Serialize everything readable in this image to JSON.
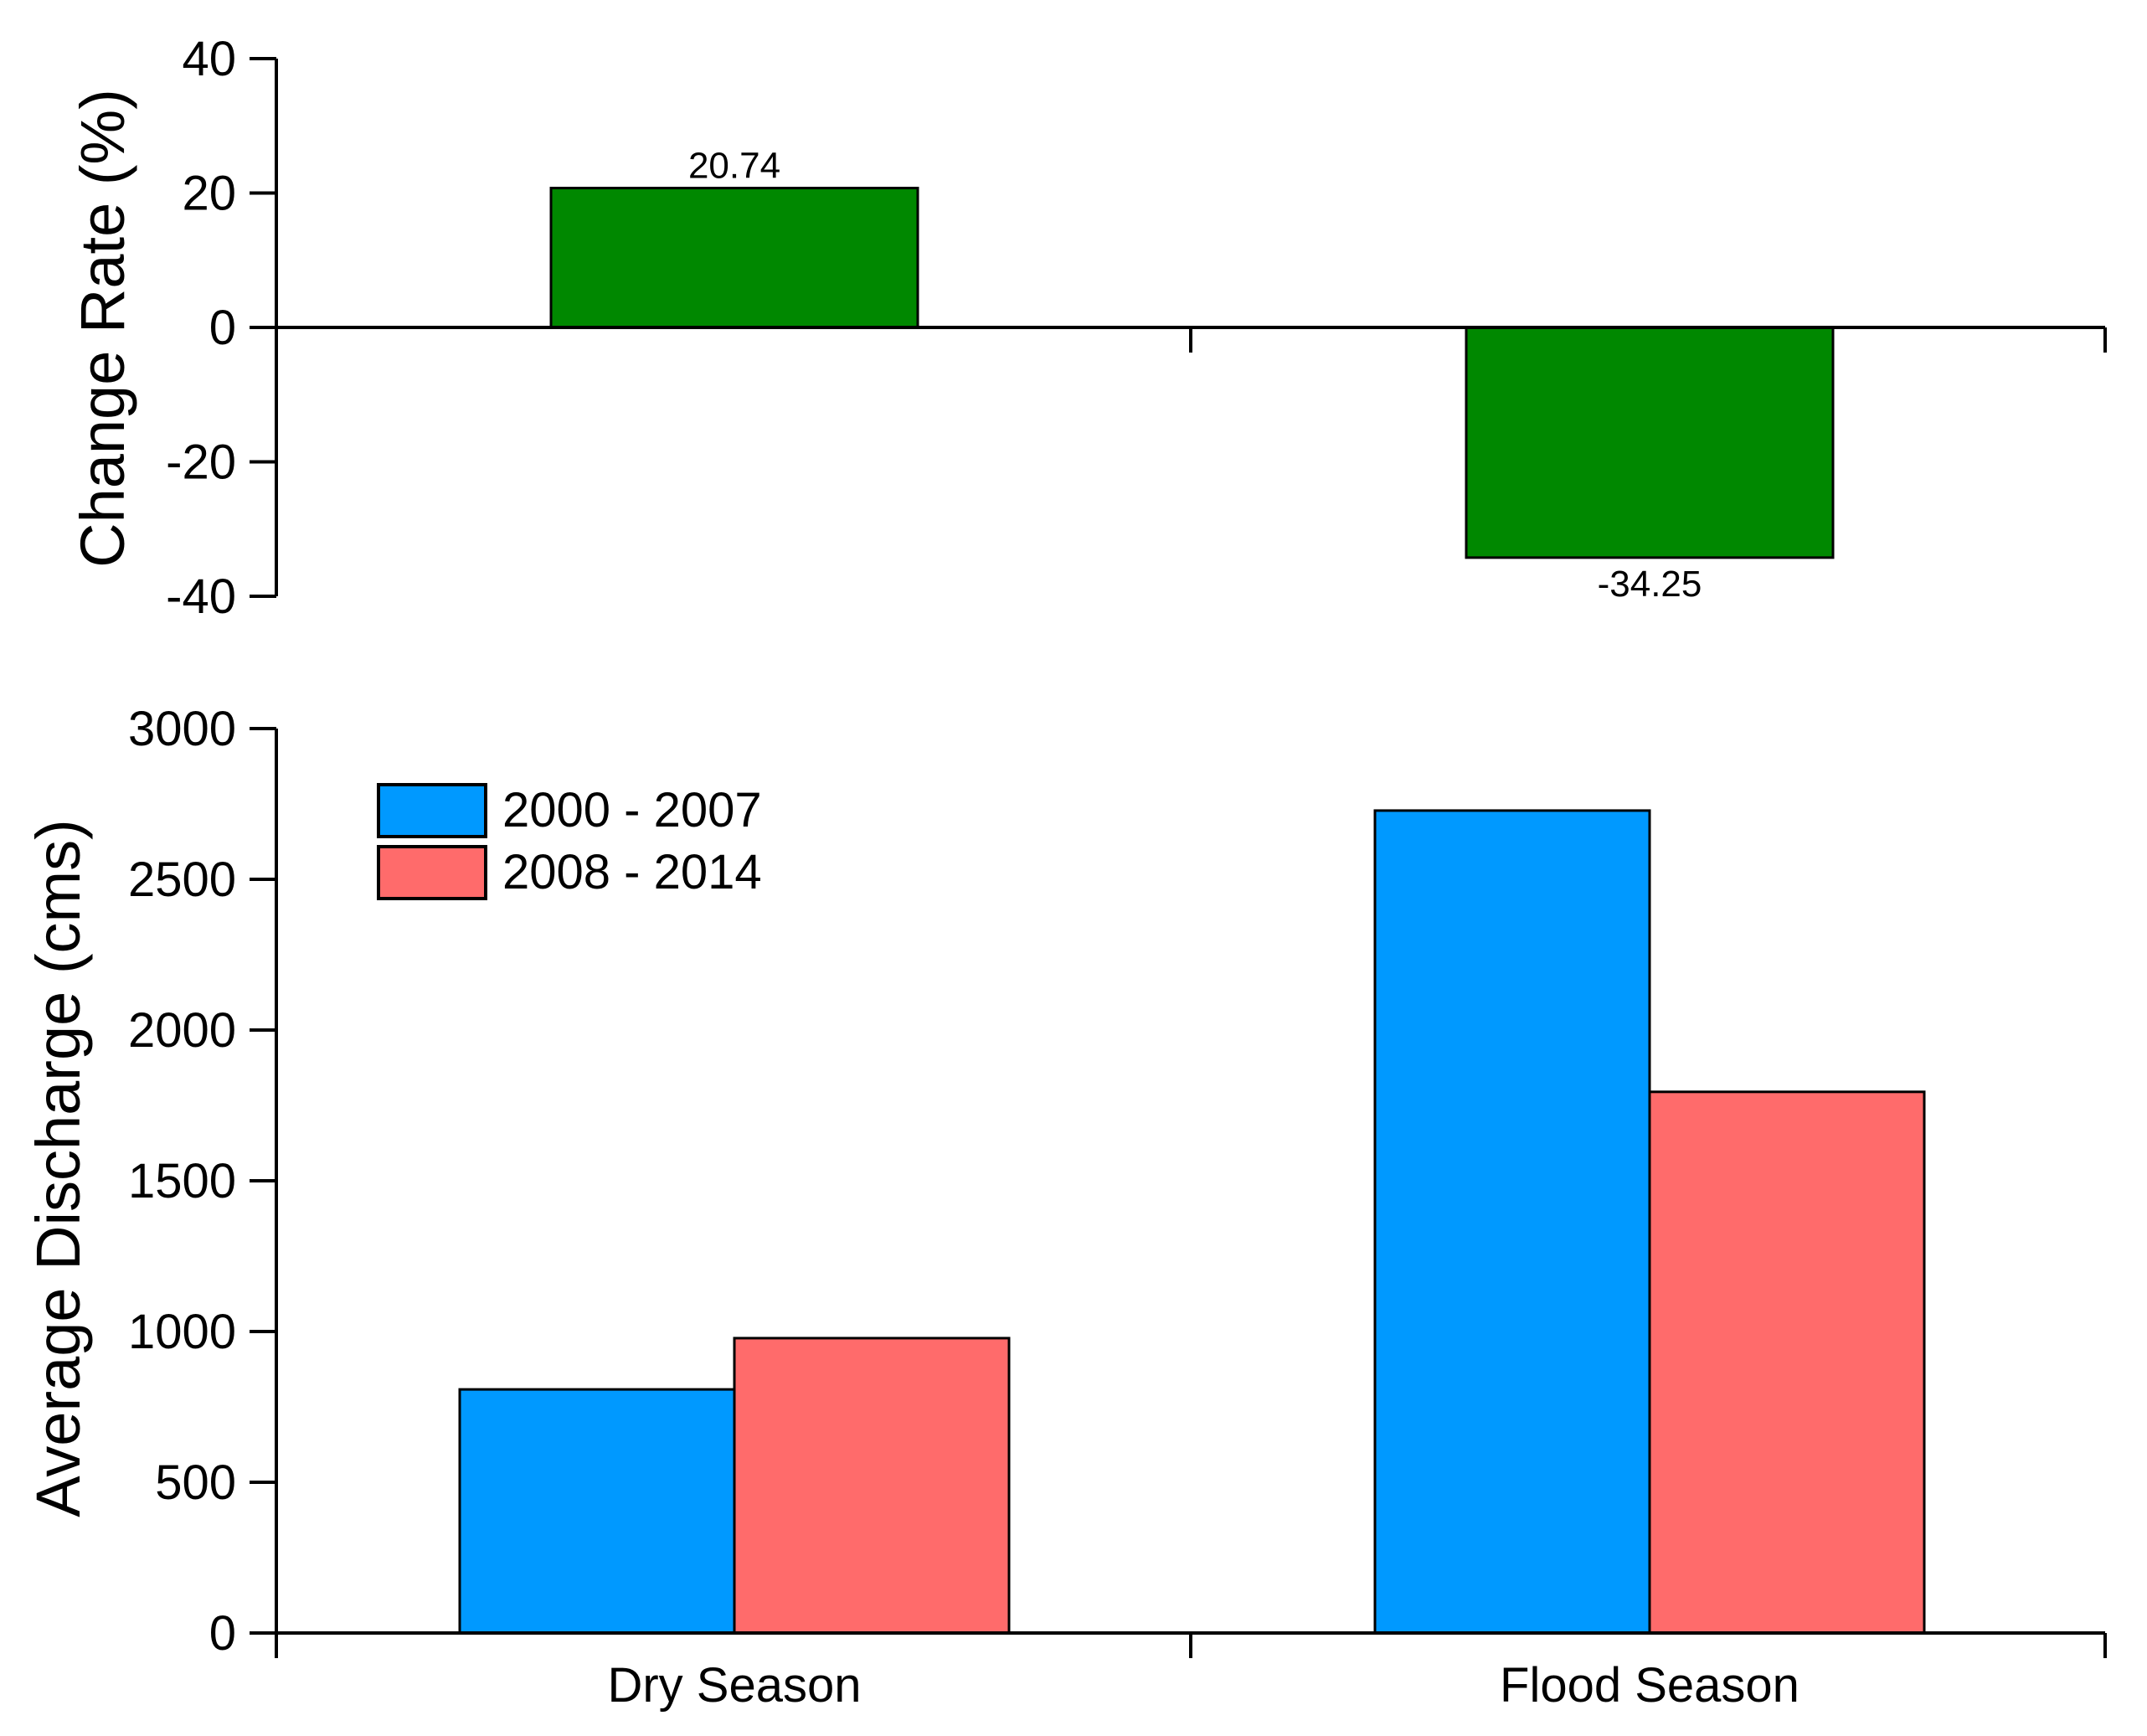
{
  "chart_data": [
    {
      "type": "bar",
      "title": "",
      "xlabel": "",
      "ylabel": "Change Rate (%)",
      "ylim": [
        -40,
        40
      ],
      "yticks": [
        "40",
        "20",
        "0",
        "-20",
        "-40"
      ],
      "categories": [
        "Dry Season",
        "Flood Season"
      ],
      "values": [
        20.74,
        -34.25
      ],
      "value_labels": [
        "20.74",
        "-34.25"
      ],
      "color": "#008800"
    },
    {
      "type": "bar",
      "title": "",
      "xlabel": "",
      "ylabel": "Average Discharge (cms)",
      "ylim": [
        0,
        3000
      ],
      "yticks": [
        "3000",
        "2500",
        "2000",
        "1500",
        "1000",
        "500",
        "0"
      ],
      "categories": [
        "Dry Season",
        "Flood Season"
      ],
      "legend_position": "top-left",
      "series": [
        {
          "name": "2000 - 2007",
          "values": [
            808,
            2728
          ],
          "color": "#0099ff"
        },
        {
          "name": "2008 - 2014",
          "values": [
            978,
            1795
          ],
          "color": "#ff6b6b"
        }
      ]
    }
  ]
}
